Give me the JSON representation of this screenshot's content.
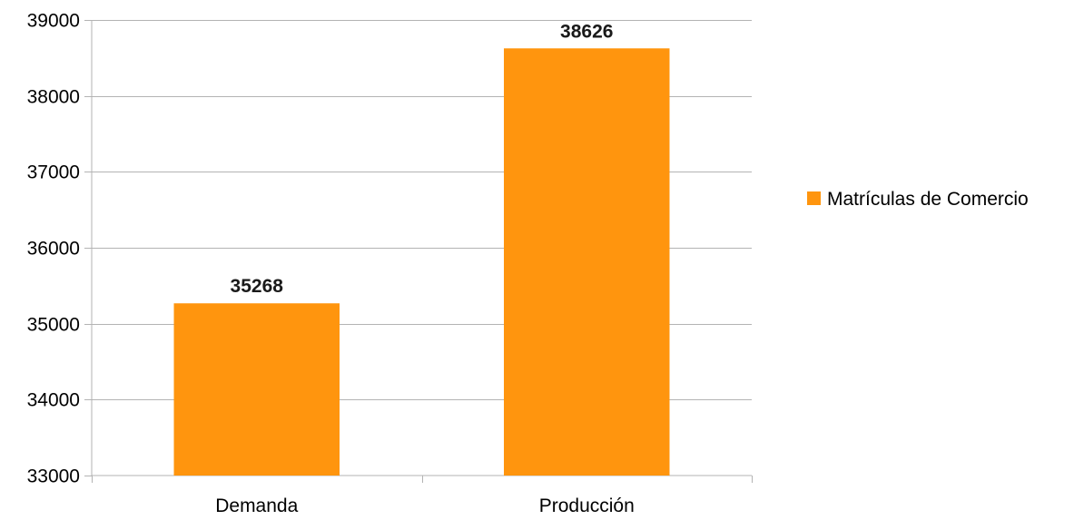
{
  "chart_data": {
    "type": "bar",
    "categories": [
      "Demanda",
      "Producción"
    ],
    "series": [
      {
        "name": "Matrículas de Comercio",
        "values": [
          35268,
          38626
        ],
        "color": "#ff950e"
      }
    ],
    "data_labels": [
      "35268",
      "38626"
    ],
    "ylim": [
      33000,
      39000
    ],
    "y_ticks": [
      33000,
      34000,
      35000,
      36000,
      37000,
      38000,
      39000
    ],
    "y_tick_labels": [
      "33000",
      "34000",
      "35000",
      "36000",
      "37000",
      "38000",
      "39000"
    ],
    "grid": true,
    "grid_color": "#b3b3b3",
    "legend_placement": "right"
  }
}
